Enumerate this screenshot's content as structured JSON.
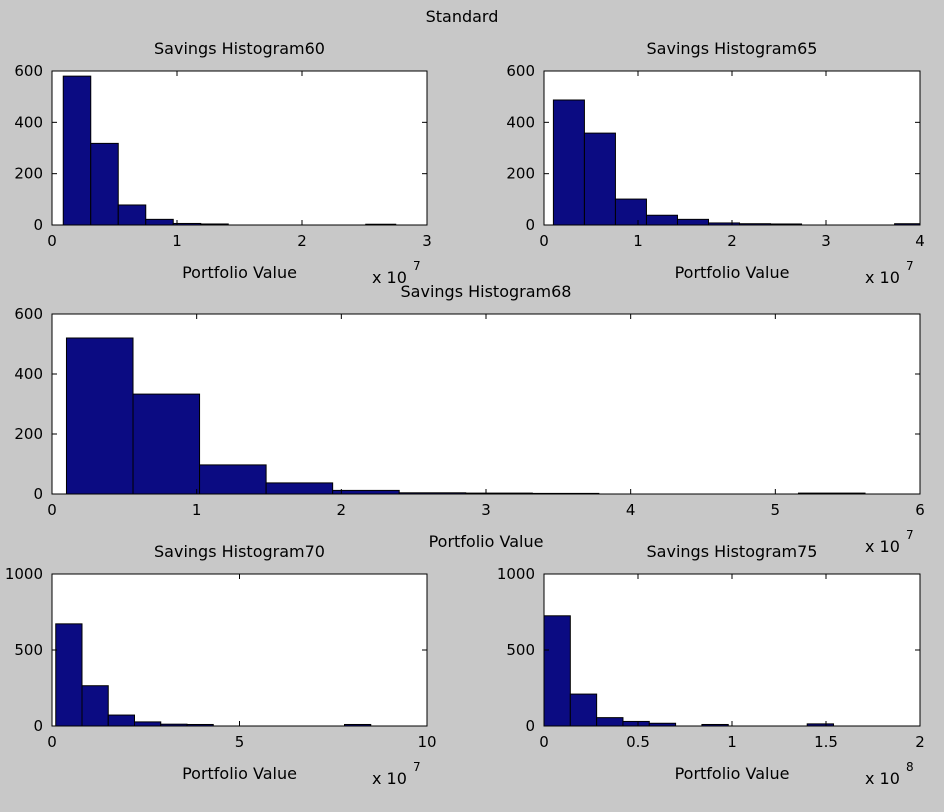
{
  "figure_title": "Standard",
  "colors": {
    "background": "#c8c8c8",
    "axes_bg": "#ffffff",
    "bar_fill": "#0b0b82",
    "bar_edge": "#000000"
  },
  "chart_data": [
    {
      "type": "bar",
      "title": "Savings Histogram60",
      "xlabel": "Portfolio Value",
      "ylabel": "",
      "x_exponent_label": "x 10",
      "x_exponent": "7",
      "xlim": [
        0,
        3
      ],
      "ylim": [
        0,
        600
      ],
      "xticks": [
        "0",
        "1",
        "2",
        "3"
      ],
      "yticks": [
        "0",
        "200",
        "400",
        "600"
      ],
      "bin_edges": [
        0.09,
        0.31,
        0.53,
        0.75,
        0.97,
        1.19,
        1.41,
        1.63,
        1.85,
        2.07,
        2.29,
        2.51,
        2.75
      ],
      "values": [
        580,
        318,
        78,
        22,
        6,
        4,
        0,
        0,
        0,
        0,
        0,
        3
      ]
    },
    {
      "type": "bar",
      "title": "Savings Histogram65",
      "xlabel": "Portfolio Value",
      "ylabel": "",
      "x_exponent_label": "x 10",
      "x_exponent": "7",
      "xlim": [
        0,
        4
      ],
      "ylim": [
        0,
        600
      ],
      "xticks": [
        "0",
        "1",
        "2",
        "3",
        "4"
      ],
      "yticks": [
        "0",
        "200",
        "400",
        "600"
      ],
      "bin_edges": [
        0.1,
        0.43,
        0.76,
        1.09,
        1.42,
        1.75,
        2.08,
        2.41,
        2.74,
        3.07,
        3.4,
        3.73,
        4.0
      ],
      "values": [
        487,
        358,
        101,
        38,
        22,
        8,
        5,
        4,
        0,
        0,
        0,
        5
      ]
    },
    {
      "type": "bar",
      "title": "Savings Histogram68",
      "xlabel": "Portfolio Value",
      "ylabel": "",
      "x_exponent_label": "x 10",
      "x_exponent": "7",
      "xlim": [
        0,
        6
      ],
      "ylim": [
        0,
        600
      ],
      "xticks": [
        "0",
        "1",
        "2",
        "3",
        "4",
        "5",
        "6"
      ],
      "yticks": [
        "0",
        "200",
        "400",
        "600"
      ],
      "bin_edges": [
        0.1,
        0.56,
        1.02,
        1.48,
        1.94,
        2.4,
        2.86,
        3.32,
        3.78,
        4.24,
        4.7,
        5.16,
        5.62
      ],
      "values": [
        520,
        333,
        97,
        37,
        12,
        4,
        3,
        2,
        0,
        0,
        0,
        3
      ]
    },
    {
      "type": "bar",
      "title": "Savings Histogram70",
      "xlabel": "Portfolio Value",
      "ylabel": "",
      "x_exponent_label": "x 10",
      "x_exponent": "7",
      "xlim": [
        0,
        10
      ],
      "ylim": [
        0,
        1000
      ],
      "xticks": [
        "0",
        "5",
        "10"
      ],
      "yticks": [
        "0",
        "500",
        "1000"
      ],
      "bin_edges": [
        0.1,
        0.8,
        1.5,
        2.2,
        2.9,
        3.6,
        4.3,
        5.0,
        5.7,
        6.4,
        7.1,
        7.8,
        8.5
      ],
      "values": [
        672,
        265,
        72,
        27,
        12,
        10,
        0,
        0,
        0,
        0,
        0,
        10
      ]
    },
    {
      "type": "bar",
      "title": "Savings Histogram75",
      "xlabel": "Portfolio Value",
      "ylabel": "",
      "x_exponent_label": "x 10",
      "x_exponent": "8",
      "xlim": [
        0,
        2
      ],
      "ylim": [
        0,
        1000
      ],
      "xticks": [
        "0",
        "0.5",
        "1",
        "1.5",
        "2"
      ],
      "yticks": [
        "0",
        "500",
        "1000"
      ],
      "bin_edges": [
        0.0,
        0.14,
        0.28,
        0.42,
        0.56,
        0.7,
        0.84,
        0.98,
        1.12,
        1.26,
        1.4,
        1.54
      ],
      "values": [
        725,
        210,
        55,
        30,
        18,
        0,
        10,
        0,
        0,
        0,
        14
      ]
    }
  ]
}
